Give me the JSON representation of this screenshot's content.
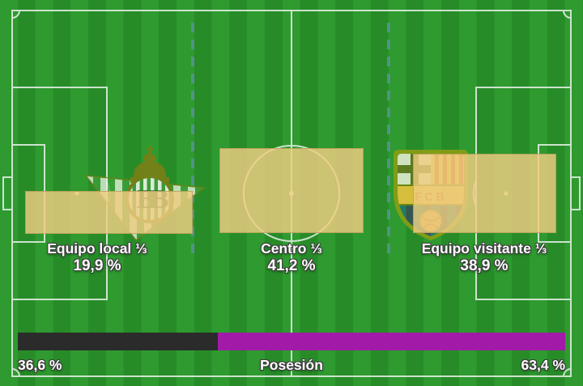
{
  "chart_data": [
    {
      "type": "bar",
      "categories": [
        "Equipo local ⅓",
        "Centro ⅓",
        "Equipo visitante ⅓"
      ],
      "values": [
        19.9,
        41.2,
        38.9
      ],
      "unit": "%",
      "layout": "zones drawn as translucent boxes over a football pitch, sized by value"
    },
    {
      "type": "bar",
      "title": "Posesión",
      "categories": [
        "Equipo local",
        "Equipo visitante"
      ],
      "values": [
        36.6,
        63.4
      ],
      "unit": "%",
      "layout": "single horizontal stacked bar, home black on left, away magenta on right"
    }
  ],
  "zones": [
    {
      "name": "local",
      "label": "Equipo local ⅓",
      "value_label": "19,9 %",
      "pct": 19.9
    },
    {
      "name": "centro",
      "label": "Centro ⅓",
      "value_label": "41,2 %",
      "pct": 41.2
    },
    {
      "name": "visitante",
      "label": "Equipo visitante ⅓",
      "value_label": "38,9 %",
      "pct": 38.9
    }
  ],
  "possession": {
    "label": "Posesión",
    "home_value_label": "36,6 %",
    "away_value_label": "63,4 %",
    "home_pct": 36.6,
    "away_pct": 63.4,
    "home_color": "#2b2b2b",
    "away_color": "#a21ba8"
  },
  "icons": {
    "home_crest": "real-betis-crest",
    "away_crest": "fc-barcelona-crest"
  },
  "colors": {
    "pitch_light": "#2e9a2f",
    "pitch_dark": "#278c28",
    "pitch_line": "#e9f2e9",
    "third_divider": "#5d94a4",
    "zone_box": "#f0cd82"
  }
}
